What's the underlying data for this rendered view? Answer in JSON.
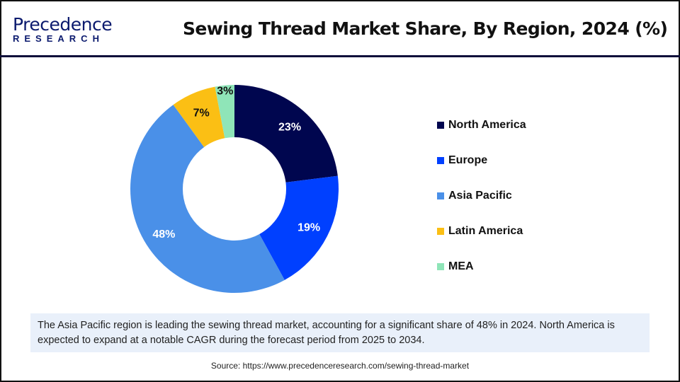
{
  "header": {
    "logo_line1": "Precedence",
    "logo_line2": "RESEARCH",
    "title": "Sewing Thread Market Share, By Region, 2024 (%)"
  },
  "chart_data": {
    "type": "pie",
    "subtype": "donut",
    "title": "Sewing Thread Market Share, By Region, 2024 (%)",
    "categories": [
      "North America",
      "Europe",
      "Asia Pacific",
      "Latin America",
      "MEA"
    ],
    "values": [
      23,
      19,
      48,
      7,
      3
    ],
    "labels": [
      "23%",
      "19%",
      "48%",
      "7%",
      "3%"
    ],
    "colors": [
      "#00064f",
      "#0040ff",
      "#4a90e8",
      "#fbbf14",
      "#8fe5b8"
    ],
    "label_colors": [
      "#ffffff",
      "#ffffff",
      "#ffffff",
      "#111111",
      "#111111"
    ],
    "legend_position": "right"
  },
  "note": "The Asia Pacific region is leading the sewing thread market, accounting for a significant share of 48% in 2024. North America is expected to expand at a notable CAGR during the forecast period from 2025 to 2034.",
  "source": "Source: https://www.precedenceresearch.com/sewing-thread-market"
}
